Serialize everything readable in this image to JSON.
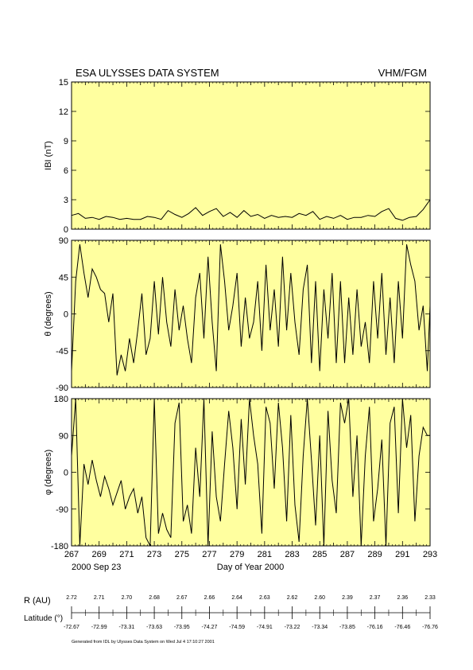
{
  "header": {
    "left_title": "ESA ULYSSES DATA SYSTEM",
    "right_title": "VHM/FGM"
  },
  "colors": {
    "panel_bg": "#ffff9f",
    "line": "#000000",
    "frame": "#000000"
  },
  "x_axis": {
    "range": [
      267,
      293
    ],
    "tick_labels": [
      "267",
      "269",
      "271",
      "273",
      "275",
      "277",
      "279",
      "281",
      "283",
      "285",
      "287",
      "289",
      "291",
      "293"
    ],
    "start_date": "2000 Sep 23",
    "label": "Day of Year 2000"
  },
  "chart_data": [
    {
      "type": "line",
      "ylabel": "IBI (nT)",
      "ylim": [
        0,
        15
      ],
      "y_ticks": [
        "0",
        "3",
        "6",
        "9",
        "12",
        "15"
      ],
      "grid": false,
      "x": [
        267,
        267.5,
        268,
        268.5,
        269,
        269.5,
        270,
        270.5,
        271,
        271.5,
        272,
        272.5,
        273,
        273.5,
        274,
        274.5,
        275,
        275.5,
        276,
        276.5,
        277,
        277.5,
        278,
        278.5,
        279,
        279.5,
        280,
        280.5,
        281,
        281.5,
        282,
        282.5,
        283,
        283.5,
        284,
        284.5,
        285,
        285.5,
        286,
        286.5,
        287,
        287.5,
        288,
        288.5,
        289,
        289.5,
        290,
        290.5,
        291,
        291.5,
        292,
        292.5,
        293
      ],
      "values": [
        1.4,
        1.6,
        1.1,
        1.2,
        1.0,
        1.3,
        1.2,
        1.0,
        1.1,
        1.0,
        1.0,
        1.3,
        1.2,
        1.0,
        1.9,
        1.5,
        1.2,
        1.6,
        2.2,
        1.4,
        1.8,
        2.1,
        1.3,
        1.7,
        1.2,
        1.9,
        1.3,
        1.5,
        1.1,
        1.4,
        1.2,
        1.3,
        1.2,
        1.6,
        1.4,
        1.8,
        1.0,
        1.3,
        1.1,
        1.4,
        1.0,
        1.2,
        1.2,
        1.4,
        1.3,
        1.8,
        2.1,
        1.1,
        0.9,
        1.2,
        1.3,
        2.0,
        3.0
      ]
    },
    {
      "type": "line",
      "ylabel": "θ (degrees)",
      "ylim": [
        -90,
        90
      ],
      "y_ticks": [
        "-90",
        "-45",
        "0",
        "45",
        "90"
      ],
      "grid": false,
      "x": [
        267,
        267.3,
        267.6,
        267.9,
        268.2,
        268.5,
        268.8,
        269.1,
        269.4,
        269.7,
        270,
        270.3,
        270.6,
        270.9,
        271.2,
        271.5,
        271.8,
        272.1,
        272.4,
        272.7,
        273,
        273.3,
        273.6,
        273.9,
        274.2,
        274.5,
        274.8,
        275.1,
        275.4,
        275.7,
        276,
        276.3,
        276.6,
        276.9,
        277.2,
        277.5,
        277.8,
        278.1,
        278.4,
        278.7,
        279,
        279.3,
        279.6,
        279.9,
        280.2,
        280.5,
        280.8,
        281.1,
        281.4,
        281.7,
        282,
        282.3,
        282.6,
        282.9,
        283.2,
        283.5,
        283.8,
        284.1,
        284.4,
        284.7,
        285,
        285.3,
        285.6,
        285.9,
        286.2,
        286.5,
        286.8,
        287.1,
        287.4,
        287.7,
        288,
        288.3,
        288.6,
        288.9,
        289.2,
        289.5,
        289.8,
        290.1,
        290.4,
        290.7,
        291,
        291.3,
        291.6,
        291.9,
        292.2,
        292.5,
        292.8,
        293
      ],
      "values": [
        -70,
        40,
        85,
        50,
        20,
        55,
        45,
        30,
        25,
        -10,
        25,
        -75,
        -50,
        -70,
        -30,
        -60,
        -20,
        25,
        -50,
        -30,
        40,
        -25,
        45,
        -10,
        -40,
        30,
        -20,
        10,
        -30,
        -60,
        20,
        50,
        -30,
        70,
        -10,
        -70,
        85,
        40,
        -20,
        10,
        50,
        -40,
        20,
        -30,
        -10,
        40,
        -45,
        60,
        -20,
        30,
        -40,
        70,
        -20,
        50,
        -10,
        -50,
        30,
        60,
        -60,
        40,
        -70,
        30,
        -30,
        50,
        -60,
        40,
        -60,
        20,
        -50,
        30,
        -40,
        -10,
        -60,
        40,
        -30,
        50,
        -50,
        20,
        -60,
        40,
        -30,
        85,
        60,
        40,
        -20,
        10,
        -70,
        10
      ]
    },
    {
      "type": "line",
      "ylabel": "φ (degrees)",
      "ylim": [
        -180,
        180
      ],
      "y_ticks": [
        "-180",
        "-90",
        "0",
        "90",
        "180"
      ],
      "grid": false,
      "x": [
        267,
        267.3,
        267.6,
        267.9,
        268.2,
        268.5,
        268.8,
        269.1,
        269.4,
        269.7,
        270,
        270.3,
        270.6,
        270.9,
        271.2,
        271.5,
        271.8,
        272.1,
        272.4,
        272.7,
        273,
        273.3,
        273.6,
        273.9,
        274.2,
        274.5,
        274.8,
        275.1,
        275.4,
        275.7,
        276,
        276.3,
        276.6,
        276.9,
        277.2,
        277.5,
        277.8,
        278.1,
        278.4,
        278.7,
        279,
        279.3,
        279.6,
        279.9,
        280.2,
        280.5,
        280.8,
        281.1,
        281.4,
        281.7,
        282,
        282.3,
        282.6,
        282.9,
        283.2,
        283.5,
        283.8,
        284.1,
        284.4,
        284.7,
        285,
        285.3,
        285.6,
        285.9,
        286.2,
        286.5,
        286.8,
        287.1,
        287.4,
        287.7,
        288,
        288.3,
        288.6,
        288.9,
        289.2,
        289.5,
        289.8,
        290.1,
        290.4,
        290.7,
        291,
        291.3,
        291.6,
        291.9,
        292.2,
        292.5,
        292.8,
        293
      ],
      "values": [
        40,
        180,
        -180,
        20,
        -30,
        30,
        -20,
        -60,
        -10,
        -40,
        -80,
        -50,
        -20,
        -90,
        -60,
        -40,
        -100,
        -60,
        -160,
        -180,
        180,
        -150,
        -100,
        -140,
        -160,
        120,
        170,
        -120,
        -80,
        -150,
        60,
        -60,
        180,
        -180,
        100,
        -60,
        -120,
        20,
        150,
        60,
        -90,
        130,
        -30,
        180,
        90,
        20,
        -150,
        160,
        120,
        -40,
        170,
        60,
        -120,
        140,
        -80,
        -170,
        40,
        180,
        30,
        -130,
        90,
        -180,
        150,
        -20,
        -100,
        170,
        120,
        180,
        -60,
        90,
        -180,
        40,
        160,
        -120,
        -40,
        80,
        -180,
        120,
        160,
        -100,
        180,
        60,
        140,
        -120,
        40,
        110,
        90,
        90
      ]
    }
  ],
  "orbit": {
    "r_label": "R (AU)",
    "latitude_label": "Latitude (°)",
    "r_values": [
      "2.72",
      "2.71",
      "2.70",
      "2.68",
      "2.67",
      "2.66",
      "2.64",
      "2.63",
      "2.62",
      "2.60",
      "2.39",
      "2.37",
      "2.36",
      "2.33"
    ],
    "latitude_values": [
      "-72.67",
      "-72.99",
      "-73.31",
      "-73.63",
      "-73.95",
      "-74.27",
      "-74.59",
      "-74.91",
      "-73.22",
      "-73.34",
      "-73.85",
      "-76.16",
      "-76.46",
      "-76.76"
    ]
  },
  "footer": {
    "generated": "Generated from IDL by Ulysses Data System on Wed Jul 4 17:10:27 2001"
  }
}
